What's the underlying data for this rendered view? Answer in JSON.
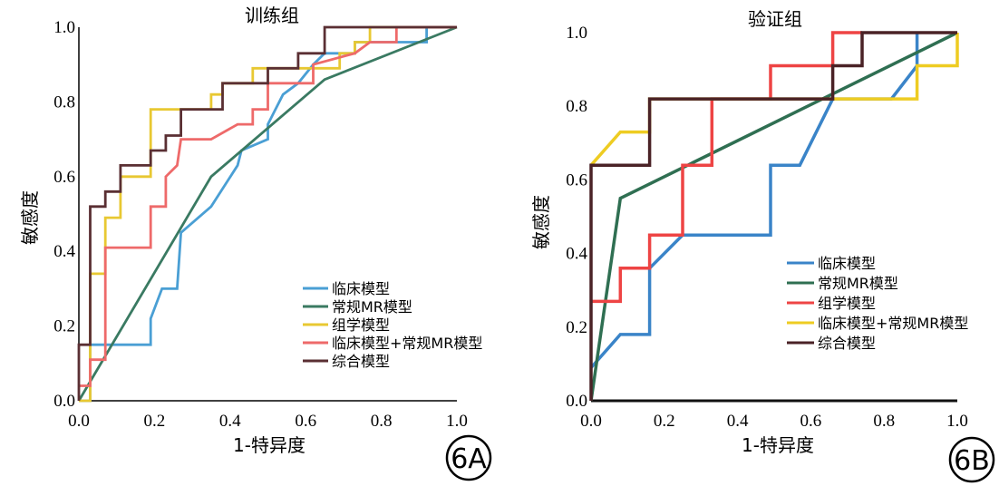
{
  "chart_data": [
    {
      "type": "line",
      "title": "训练组",
      "xlabel": "1-特异度",
      "ylabel": "敏感度",
      "xlim": [
        0,
        1
      ],
      "ylim": [
        0,
        1
      ],
      "xticks": [
        "0.0",
        "0.2",
        "0.4",
        "0.6",
        "0.8",
        "1.0"
      ],
      "yticks": [
        "0.0",
        "0.2",
        "0.4",
        "0.6",
        "0.8",
        "1.0"
      ],
      "legend_position": "bottom-right",
      "panel_label": "6A",
      "series": [
        {
          "name": "临床模型",
          "color": "#4a9fd4",
          "step": false,
          "points": [
            [
              0,
              0
            ],
            [
              0.03,
              0
            ],
            [
              0.03,
              0.15
            ],
            [
              0.19,
              0.15
            ],
            [
              0.19,
              0.22
            ],
            [
              0.22,
              0.3
            ],
            [
              0.26,
              0.3
            ],
            [
              0.27,
              0.45
            ],
            [
              0.35,
              0.52
            ],
            [
              0.42,
              0.63
            ],
            [
              0.43,
              0.67
            ],
            [
              0.5,
              0.7
            ],
            [
              0.5,
              0.74
            ],
            [
              0.54,
              0.82
            ],
            [
              0.58,
              0.85
            ],
            [
              0.62,
              0.9
            ],
            [
              0.65,
              0.93
            ],
            [
              0.73,
              0.93
            ],
            [
              0.73,
              0.96
            ],
            [
              0.92,
              0.96
            ],
            [
              0.92,
              1.0
            ],
            [
              1.0,
              1.0
            ]
          ]
        },
        {
          "name": "常规MR模型",
          "color": "#3a7a62",
          "step": false,
          "points": [
            [
              0,
              0
            ],
            [
              0.35,
              0.6
            ],
            [
              0.65,
              0.86
            ],
            [
              1.0,
              1.0
            ]
          ]
        },
        {
          "name": "组学模型",
          "color": "#e8c832",
          "step": true,
          "points": [
            [
              0,
              0
            ],
            [
              0.03,
              0
            ],
            [
              0.03,
              0.34
            ],
            [
              0.07,
              0.34
            ],
            [
              0.07,
              0.49
            ],
            [
              0.11,
              0.49
            ],
            [
              0.11,
              0.6
            ],
            [
              0.19,
              0.6
            ],
            [
              0.19,
              0.78
            ],
            [
              0.35,
              0.78
            ],
            [
              0.35,
              0.82
            ],
            [
              0.38,
              0.82
            ],
            [
              0.38,
              0.85
            ],
            [
              0.46,
              0.85
            ],
            [
              0.46,
              0.89
            ],
            [
              0.69,
              0.89
            ],
            [
              0.69,
              0.93
            ],
            [
              0.73,
              0.93
            ],
            [
              0.73,
              0.96
            ],
            [
              0.77,
              0.96
            ],
            [
              0.77,
              1.0
            ],
            [
              1.0,
              1.0
            ]
          ]
        },
        {
          "name": "临床模型+常规MR模型",
          "color": "#ee6a6a",
          "step": true,
          "points": [
            [
              0,
              0.04
            ],
            [
              0.03,
              0.04
            ],
            [
              0.03,
              0.11
            ],
            [
              0.07,
              0.11
            ],
            [
              0.07,
              0.41
            ],
            [
              0.19,
              0.41
            ],
            [
              0.19,
              0.52
            ],
            [
              0.23,
              0.52
            ],
            [
              0.23,
              0.6
            ],
            [
              0.26,
              0.63
            ],
            [
              0.27,
              0.7
            ],
            [
              0.35,
              0.7
            ],
            [
              0.42,
              0.74
            ],
            [
              0.46,
              0.74
            ],
            [
              0.46,
              0.78
            ],
            [
              0.5,
              0.78
            ],
            [
              0.5,
              0.85
            ],
            [
              0.62,
              0.85
            ],
            [
              0.62,
              0.9
            ],
            [
              0.73,
              0.93
            ],
            [
              0.77,
              0.96
            ],
            [
              0.84,
              0.96
            ],
            [
              0.84,
              1.0
            ],
            [
              1.0,
              1.0
            ]
          ]
        },
        {
          "name": "综合模型",
          "color": "#5a2f33",
          "step": true,
          "points": [
            [
              0,
              0
            ],
            [
              0,
              0.15
            ],
            [
              0.03,
              0.15
            ],
            [
              0.03,
              0.52
            ],
            [
              0.07,
              0.52
            ],
            [
              0.07,
              0.56
            ],
            [
              0.11,
              0.56
            ],
            [
              0.11,
              0.63
            ],
            [
              0.19,
              0.63
            ],
            [
              0.19,
              0.67
            ],
            [
              0.23,
              0.67
            ],
            [
              0.23,
              0.71
            ],
            [
              0.27,
              0.71
            ],
            [
              0.27,
              0.78
            ],
            [
              0.38,
              0.78
            ],
            [
              0.38,
              0.85
            ],
            [
              0.5,
              0.85
            ],
            [
              0.5,
              0.89
            ],
            [
              0.58,
              0.89
            ],
            [
              0.58,
              0.93
            ],
            [
              0.65,
              0.93
            ],
            [
              0.65,
              1.0
            ],
            [
              1.0,
              1.0
            ]
          ]
        }
      ]
    },
    {
      "type": "line",
      "title": "验证组",
      "xlabel": "1-特异度",
      "ylabel": "敏感度",
      "xlim": [
        0,
        1
      ],
      "ylim": [
        0,
        1
      ],
      "xticks": [
        "0.0",
        "0.2",
        "0.4",
        "0.6",
        "0.8",
        "1.0"
      ],
      "yticks": [
        "0.0",
        "0.2",
        "0.4",
        "0.6",
        "0.8",
        "1.0"
      ],
      "legend_position": "bottom-right",
      "panel_label": "6B",
      "series": [
        {
          "name": "临床模型",
          "color": "#3a84c8",
          "step": false,
          "points": [
            [
              0,
              0.09
            ],
            [
              0.08,
              0.18
            ],
            [
              0.16,
              0.18
            ],
            [
              0.16,
              0.36
            ],
            [
              0.25,
              0.45
            ],
            [
              0.49,
              0.45
            ],
            [
              0.49,
              0.64
            ],
            [
              0.57,
              0.64
            ],
            [
              0.66,
              0.82
            ],
            [
              0.82,
              0.82
            ],
            [
              0.89,
              0.91
            ],
            [
              0.89,
              1.0
            ]
          ]
        },
        {
          "name": "常规MR模型",
          "color": "#2f6f52",
          "step": false,
          "points": [
            [
              0,
              0
            ],
            [
              0.08,
              0.55
            ],
            [
              1.0,
              1.0
            ]
          ]
        },
        {
          "name": "组学模型",
          "color": "#ee4444",
          "step": true,
          "points": [
            [
              0,
              0.27
            ],
            [
              0.08,
              0.27
            ],
            [
              0.08,
              0.36
            ],
            [
              0.16,
              0.36
            ],
            [
              0.16,
              0.45
            ],
            [
              0.25,
              0.45
            ],
            [
              0.25,
              0.64
            ],
            [
              0.33,
              0.64
            ],
            [
              0.33,
              0.82
            ],
            [
              0.49,
              0.82
            ],
            [
              0.49,
              0.91
            ],
            [
              0.66,
              0.91
            ],
            [
              0.66,
              1.0
            ],
            [
              0.74,
              1.0
            ]
          ]
        },
        {
          "name": "临床模型+常规MR模型",
          "color": "#eecc22",
          "step": false,
          "points": [
            [
              0,
              0.64
            ],
            [
              0.08,
              0.73
            ],
            [
              0.16,
              0.73
            ],
            [
              0.16,
              0.82
            ],
            [
              0.66,
              0.82
            ],
            [
              0.89,
              0.82
            ],
            [
              0.89,
              0.91
            ],
            [
              1.0,
              0.91
            ],
            [
              1.0,
              1.0
            ]
          ]
        },
        {
          "name": "综合模型",
          "color": "#4a2226",
          "step": true,
          "points": [
            [
              0,
              0
            ],
            [
              0,
              0.64
            ],
            [
              0.16,
              0.64
            ],
            [
              0.16,
              0.82
            ],
            [
              0.66,
              0.82
            ],
            [
              0.66,
              0.91
            ],
            [
              0.74,
              0.91
            ],
            [
              0.74,
              1.0
            ],
            [
              1.0,
              1.0
            ]
          ]
        }
      ]
    }
  ]
}
